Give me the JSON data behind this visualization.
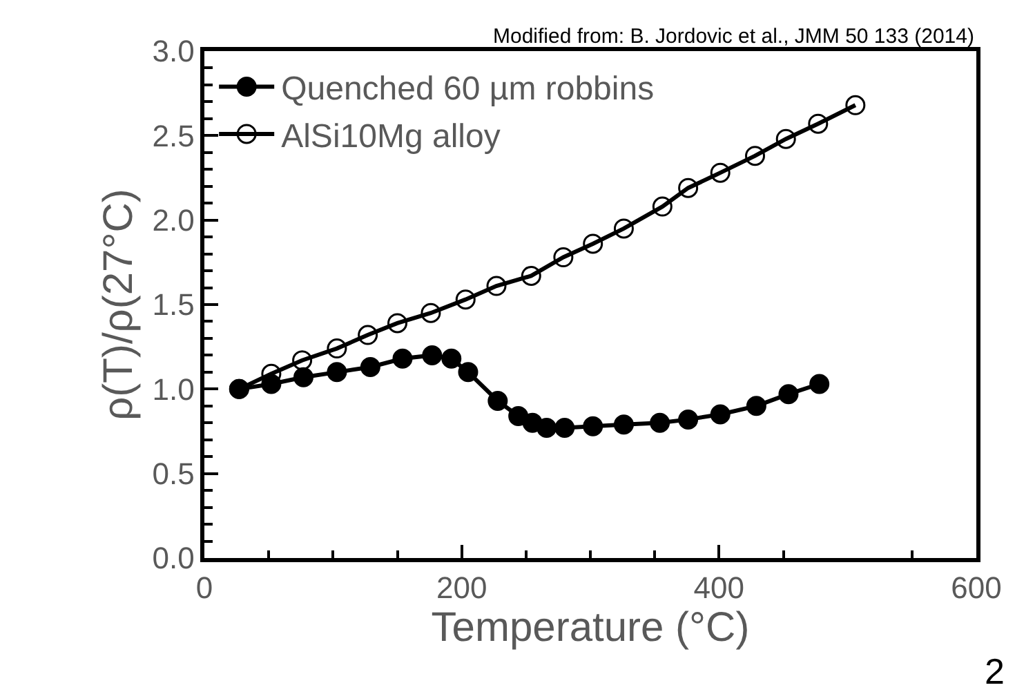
{
  "chart_data": {
    "type": "line",
    "xlabel": "Temperature (°C)",
    "ylabel": "ρ(T)/ρ(27°C)",
    "annotations": [
      "Modified from: B. Jordovic et al., JMM 50 133 (2014)",
      "2"
    ],
    "xlim": [
      0,
      600
    ],
    "xticks": [
      0,
      {
        "value": 50,
        "label": null
      },
      200,
      {
        "value": 100,
        "label": null
      },
      {
        "value": 150,
        "label": null
      },
      {
        "value": 250,
        "label": null
      },
      {
        "value": 300,
        "label": null
      },
      {
        "value": 350,
        "label": null
      },
      400,
      {
        "value": 450,
        "label": null
      },
      {
        "value": 550,
        "label": null
      },
      600
    ],
    "ylim": [
      0,
      3
    ],
    "yticks": [
      {
        "value": 0,
        "label": "0.0"
      },
      0.5,
      {
        "value": 1,
        "label": "1.0"
      },
      1.5,
      {
        "value": 2,
        "label": "2.0"
      },
      2.5,
      {
        "value": 3,
        "label": "3.0"
      },
      {
        "value": 0.1,
        "label": null
      },
      {
        "value": 0.2,
        "label": null
      },
      {
        "value": 0.3,
        "label": null
      },
      {
        "value": 0.4,
        "label": null
      },
      {
        "value": 0.6,
        "label": null
      },
      {
        "value": 0.7,
        "label": null
      },
      {
        "value": 0.8,
        "label": null
      },
      {
        "value": 0.9,
        "label": null
      },
      {
        "value": 1.1,
        "label": null
      },
      {
        "value": 1.2,
        "label": null
      },
      {
        "value": 1.3,
        "label": null
      },
      {
        "value": 1.4,
        "label": null
      },
      {
        "value": 1.6,
        "label": null
      },
      {
        "value": 1.7,
        "label": null
      },
      {
        "value": 1.8,
        "label": null
      },
      {
        "value": 1.9,
        "label": null
      },
      {
        "value": 2.1,
        "label": null
      },
      {
        "value": 2.2,
        "label": null
      },
      {
        "value": 2.3,
        "label": null
      },
      {
        "value": 2.4,
        "label": null
      },
      {
        "value": 2.6,
        "label": null
      },
      {
        "value": 2.7,
        "label": null
      },
      {
        "value": 2.8,
        "label": null
      },
      {
        "value": 2.9,
        "label": null
      }
    ],
    "grid": false,
    "legend": "top left",
    "line_style": "solid",
    "series": [
      {
        "name": "Quenched 60 µm robbins",
        "color": "#000000",
        "marker": "circle",
        "x": [
          27,
          52,
          77,
          103,
          129,
          154,
          177,
          192,
          205,
          228,
          244,
          255,
          266,
          280,
          302,
          326,
          354,
          376,
          401,
          429,
          454,
          478
        ],
        "values": [
          1.0,
          1.03,
          1.07,
          1.1,
          1.13,
          1.18,
          1.2,
          1.18,
          1.1,
          0.93,
          0.84,
          0.8,
          0.77,
          0.77,
          0.78,
          0.79,
          0.8,
          0.82,
          0.85,
          0.9,
          0.97,
          1.03
        ]
      },
      {
        "name": "AlSi10Mg alloy",
        "color": "#000000",
        "marker": "circle-open",
        "x": [
          27,
          52,
          76,
          103,
          127,
          150,
          176,
          203,
          227,
          254,
          279,
          302,
          326,
          356,
          376,
          401,
          428,
          452,
          477,
          506
        ],
        "values": [
          1.0,
          1.09,
          1.17,
          1.24,
          1.32,
          1.39,
          1.45,
          1.53,
          1.61,
          1.67,
          1.78,
          1.86,
          1.95,
          2.08,
          2.19,
          2.28,
          2.38,
          2.48,
          2.57,
          2.68
        ]
      }
    ]
  }
}
